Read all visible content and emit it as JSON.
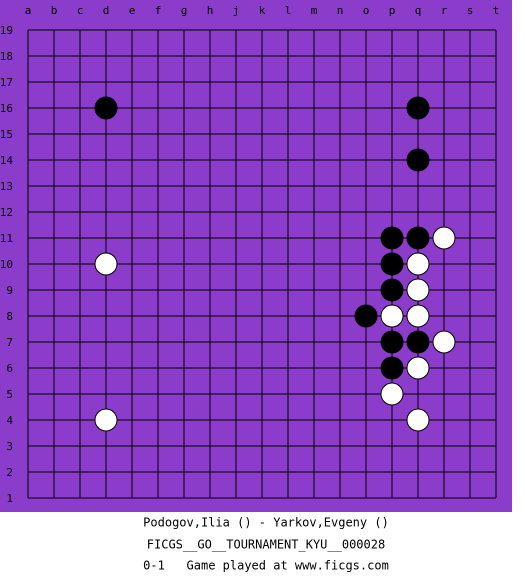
{
  "board": {
    "columns": [
      "a",
      "b",
      "c",
      "d",
      "e",
      "f",
      "g",
      "h",
      "j",
      "k",
      "l",
      "m",
      "n",
      "o",
      "p",
      "q",
      "r",
      "s",
      "t"
    ],
    "rows": [
      19,
      18,
      17,
      16,
      15,
      14,
      13,
      12,
      11,
      10,
      9,
      8,
      7,
      6,
      5,
      4,
      3,
      2,
      1
    ],
    "stones": [
      {
        "color": "black",
        "col": "d",
        "row": 16
      },
      {
        "color": "black",
        "col": "q",
        "row": 16
      },
      {
        "color": "black",
        "col": "q",
        "row": 14
      },
      {
        "color": "black",
        "col": "p",
        "row": 11
      },
      {
        "color": "black",
        "col": "q",
        "row": 11
      },
      {
        "color": "white",
        "col": "r",
        "row": 11
      },
      {
        "color": "white",
        "col": "d",
        "row": 10
      },
      {
        "color": "black",
        "col": "p",
        "row": 10
      },
      {
        "color": "white",
        "col": "q",
        "row": 10
      },
      {
        "color": "black",
        "col": "p",
        "row": 9
      },
      {
        "color": "white",
        "col": "q",
        "row": 9
      },
      {
        "color": "black",
        "col": "o",
        "row": 8
      },
      {
        "color": "white",
        "col": "p",
        "row": 8
      },
      {
        "color": "white",
        "col": "q",
        "row": 8
      },
      {
        "color": "black",
        "col": "p",
        "row": 7
      },
      {
        "color": "black",
        "col": "q",
        "row": 7
      },
      {
        "color": "white",
        "col": "r",
        "row": 7
      },
      {
        "color": "black",
        "col": "p",
        "row": 6
      },
      {
        "color": "white",
        "col": "q",
        "row": 6
      },
      {
        "color": "white",
        "col": "p",
        "row": 5
      },
      {
        "color": "white",
        "col": "d",
        "row": 4
      },
      {
        "color": "white",
        "col": "q",
        "row": 4
      }
    ]
  },
  "caption": {
    "players": "Podogov,Ilia () - Yarkov,Evgeny ()",
    "event": "FICGS__GO__TOURNAMENT_KYU__000028",
    "result": "0-1   Game played at www.ficgs.com"
  }
}
